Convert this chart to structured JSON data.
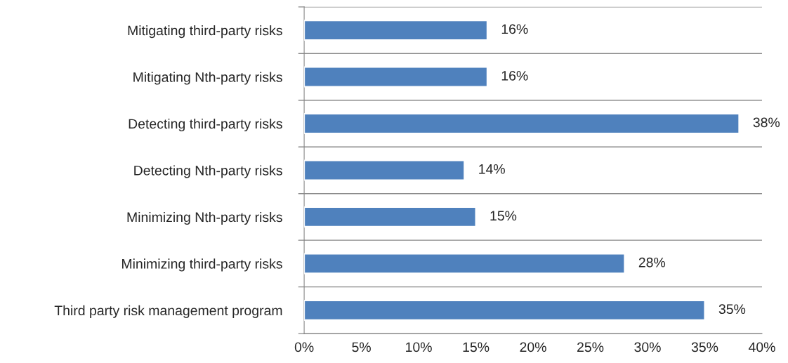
{
  "chart_data": {
    "type": "bar",
    "orientation": "horizontal",
    "categories": [
      "Mitigating third-party risks",
      "Mitigating Nth-party risks",
      "Detecting third-party risks",
      "Detecting Nth-party risks",
      "Minimizing Nth-party risks",
      "Minimizing third-party risks",
      "Third party risk management program"
    ],
    "values": [
      16,
      16,
      38,
      14,
      15,
      28,
      35
    ],
    "value_labels": [
      "16%",
      "16%",
      "38%",
      "14%",
      "15%",
      "28%",
      "35%"
    ],
    "color": "#4f81bd",
    "xlim": [
      0,
      40
    ],
    "xticks": [
      {
        "value": 0,
        "label": "0%"
      },
      {
        "value": 5,
        "label": "5%"
      },
      {
        "value": 10,
        "label": "10%"
      },
      {
        "value": 15,
        "label": "15%"
      },
      {
        "value": 20,
        "label": "20%"
      },
      {
        "value": 25,
        "label": "25%"
      },
      {
        "value": 30,
        "label": "30%"
      },
      {
        "value": 35,
        "label": "35%"
      },
      {
        "value": 40,
        "label": "40%"
      }
    ],
    "grid": "y",
    "legend": false
  }
}
